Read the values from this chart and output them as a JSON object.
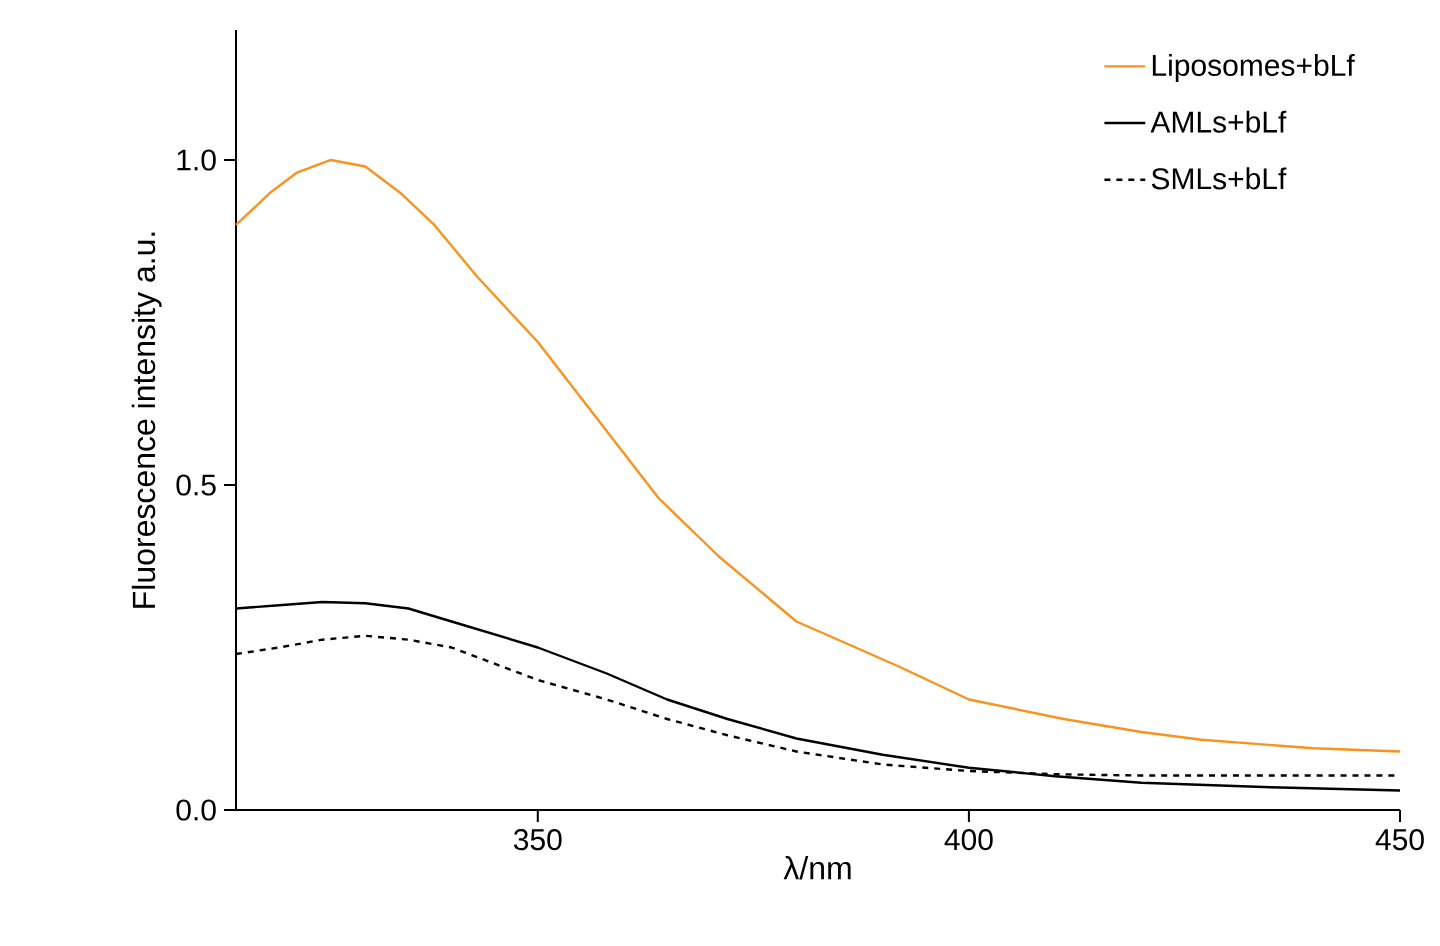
{
  "chart_data": {
    "type": "line",
    "xlabel": "λ/nm",
    "ylabel": "Fluorescence intensity a.u.",
    "xlim": [
      315,
      450
    ],
    "ylim": [
      0,
      1.2
    ],
    "xticks": [
      350,
      400,
      450
    ],
    "yticks": [
      {
        "value": 0,
        "label": "0.0"
      },
      {
        "value": 0.5,
        "label": "0.5"
      },
      {
        "value": 1,
        "label": "1.0"
      }
    ],
    "legend": "top right",
    "grid": false,
    "series": [
      {
        "name": "Liposomes+bLf",
        "color": "#f7931e",
        "line_style": "solid",
        "x": [
          315,
          319,
          322,
          326,
          330,
          334,
          338,
          343,
          350,
          357,
          364,
          371,
          380,
          392,
          400,
          411,
          420,
          427,
          440,
          450
        ],
        "values": [
          0.9,
          0.95,
          0.98,
          1.0,
          0.99,
          0.95,
          0.9,
          0.82,
          0.72,
          0.6,
          0.48,
          0.39,
          0.29,
          0.22,
          0.17,
          0.14,
          0.12,
          0.108,
          0.095,
          0.09
        ]
      },
      {
        "name": "AMLs+bLf",
        "color": "#000000",
        "line_style": "solid",
        "x": [
          315,
          320,
          325,
          330,
          335,
          340,
          350,
          358,
          365,
          372,
          380,
          390,
          400,
          410,
          420,
          435,
          450
        ],
        "values": [
          0.31,
          0.315,
          0.32,
          0.318,
          0.31,
          0.29,
          0.25,
          0.21,
          0.17,
          0.14,
          0.11,
          0.085,
          0.065,
          0.052,
          0.042,
          0.035,
          0.03
        ]
      },
      {
        "name": "SMLs+bLf",
        "color": "#000000",
        "line_style": "dashed",
        "x": [
          315,
          320,
          325,
          330,
          335,
          340,
          350,
          358,
          365,
          372,
          380,
          390,
          400,
          410,
          420,
          435,
          450
        ],
        "values": [
          0.24,
          0.25,
          0.262,
          0.268,
          0.262,
          0.25,
          0.2,
          0.17,
          0.14,
          0.115,
          0.09,
          0.07,
          0.06,
          0.055,
          0.053,
          0.053,
          0.053
        ]
      }
    ]
  }
}
